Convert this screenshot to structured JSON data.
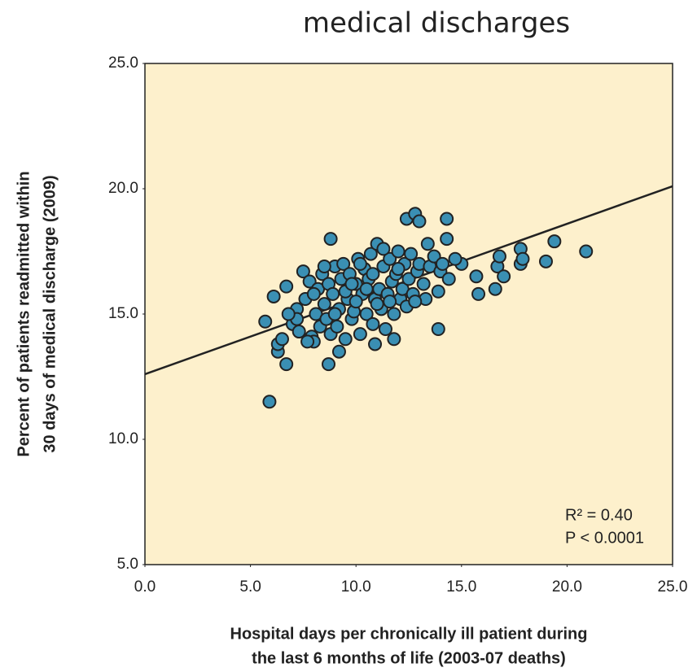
{
  "chart_data": {
    "type": "scatter",
    "title": "medical discharges",
    "xlabel": [
      "Hospital days per chronically ill patient during",
      "the last 6 months of life (2003-07 deaths)"
    ],
    "ylabel": [
      "Percent of patients readmitted within",
      "30 days of medical discharge (2009)"
    ],
    "annotations": [
      "R² = 0.40",
      "P < 0.0001"
    ],
    "xlim": [
      0,
      25
    ],
    "ylim": [
      5,
      25
    ],
    "xticks": [
      {
        "value": 0,
        "label": "0.0"
      },
      {
        "value": 5,
        "label": "5.0"
      },
      {
        "value": 10,
        "label": "10.0"
      },
      {
        "value": 15,
        "label": "15.0"
      },
      {
        "value": 20,
        "label": "20.0"
      },
      {
        "value": 25,
        "label": "25.0"
      }
    ],
    "yticks": [
      {
        "value": 5,
        "label": "5.0"
      },
      {
        "value": 10,
        "label": "10.0"
      },
      {
        "value": 15,
        "label": "15.0"
      },
      {
        "value": 20,
        "label": "20.0"
      },
      {
        "value": 25,
        "label": "25.0"
      }
    ],
    "color": "#3a8fb3",
    "edgecolor": "#222222",
    "background": "#fdf0cc",
    "trendline": {
      "x": [
        0,
        25
      ],
      "y": [
        12.6,
        20.1
      ]
    },
    "x": [
      5.9,
      8.7,
      6.7,
      5.7,
      6.1,
      6.7,
      8.8,
      12.4,
      12.8,
      13.0,
      14.3,
      14.3,
      13.4,
      13.9,
      15.0,
      15.7,
      15.8,
      16.6,
      16.7,
      16.8,
      17.0,
      17.8,
      17.8,
      17.9,
      19.0,
      19.4,
      20.9,
      11.8,
      10.9,
      9.2,
      6.3,
      6.3,
      6.5,
      7.0,
      7.2,
      7.5,
      7.3,
      7.6,
      7.8,
      7.9,
      8.0,
      8.1,
      8.2,
      8.3,
      8.4,
      8.5,
      8.6,
      8.7,
      8.8,
      8.9,
      9.0,
      9.1,
      9.2,
      9.3,
      9.4,
      9.5,
      9.6,
      9.7,
      9.8,
      9.9,
      10.0,
      10.1,
      10.2,
      10.3,
      10.4,
      10.5,
      10.6,
      10.7,
      10.8,
      10.9,
      11.0,
      11.1,
      11.2,
      11.3,
      11.4,
      11.5,
      11.6,
      11.7,
      11.8,
      11.9,
      12.0,
      12.1,
      12.2,
      12.3,
      12.4,
      12.5,
      12.6,
      12.7,
      12.9,
      13.0,
      13.2,
      13.3,
      13.5,
      13.7,
      13.9,
      14.0,
      14.1,
      14.4,
      14.7,
      10.0,
      10.5,
      11.0,
      9.5,
      8.0,
      8.5,
      9.0,
      10.2,
      11.3,
      12.0,
      7.2,
      6.8,
      7.7,
      10.8,
      11.6,
      12.8,
      9.8
    ],
    "values": [
      11.5,
      13.0,
      13.0,
      14.7,
      15.7,
      16.1,
      18.0,
      18.8,
      19.0,
      18.7,
      18.8,
      18.0,
      17.8,
      14.4,
      17.0,
      16.5,
      15.8,
      16.0,
      16.9,
      17.3,
      16.5,
      17.6,
      17.0,
      17.2,
      17.1,
      17.9,
      17.5,
      14.0,
      13.8,
      13.5,
      13.5,
      13.8,
      14.0,
      14.6,
      15.2,
      16.7,
      14.3,
      15.6,
      16.3,
      14.1,
      13.9,
      15.0,
      16.0,
      14.5,
      16.6,
      15.4,
      14.8,
      16.2,
      14.2,
      15.8,
      16.9,
      14.5,
      15.2,
      16.4,
      17.0,
      14.0,
      15.6,
      16.6,
      14.8,
      15.1,
      16.2,
      17.2,
      14.2,
      15.8,
      16.8,
      15.0,
      16.4,
      17.4,
      14.6,
      15.6,
      17.8,
      16.0,
      15.2,
      16.9,
      14.4,
      15.8,
      17.2,
      16.3,
      15.0,
      16.6,
      17.5,
      15.6,
      16.0,
      17.0,
      15.3,
      16.4,
      17.4,
      15.8,
      16.7,
      17.0,
      16.2,
      15.6,
      16.9,
      17.3,
      15.9,
      16.7,
      17.0,
      16.4,
      17.2,
      15.5,
      16.0,
      15.4,
      15.9,
      15.8,
      16.9,
      15.0,
      17.0,
      17.6,
      16.8,
      14.8,
      15.0,
      13.9,
      16.6,
      15.5,
      15.5,
      16.2
    ]
  }
}
